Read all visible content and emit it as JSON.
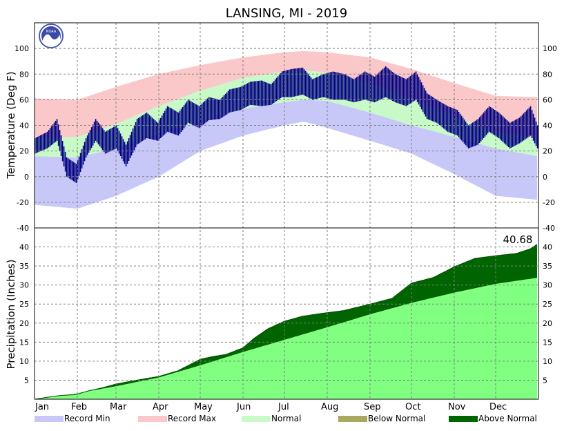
{
  "colors": {
    "record_min": "#c8c8f8",
    "record_max": "#fac8c8",
    "normal": "#c8fac8",
    "observed": "#00007f",
    "below_normal": "#a8a860",
    "above_normal": "#006400",
    "normal_precip": "#80ff80",
    "grid": "#808080"
  },
  "logo": {
    "text": "NOAA",
    "icon": "noaa-logo-icon"
  },
  "chart_data": [
    {
      "type": "area",
      "title": "LANSING, MI - 2019",
      "ylabel": "Temperature (Deg F)",
      "ylim": [
        -40,
        120
      ],
      "yticks": [
        -40,
        -20,
        0,
        20,
        40,
        60,
        80,
        100
      ],
      "grid": true,
      "x_unit": "day of year",
      "xlim": [
        1,
        365
      ],
      "series": [
        {
          "name": "Record Max",
          "x": [
            1,
            32,
            60,
            91,
            121,
            152,
            182,
            196,
            213,
            244,
            274,
            305,
            335,
            365
          ],
          "values": [
            61,
            60,
            70,
            80,
            87,
            93,
            97,
            98,
            97,
            93,
            84,
            73,
            63,
            62
          ]
        },
        {
          "name": "Normal",
          "x": [
            1,
            32,
            60,
            91,
            121,
            152,
            182,
            196,
            213,
            244,
            274,
            305,
            335,
            365
          ],
          "values_high": [
            30,
            31,
            41,
            55,
            67,
            77,
            82,
            83,
            81,
            73,
            61,
            47,
            35,
            30
          ],
          "values_low": [
            16,
            15,
            22,
            33,
            43,
            53,
            58,
            60,
            59,
            50,
            40,
            31,
            22,
            16
          ]
        },
        {
          "name": "Record Min",
          "x": [
            1,
            32,
            60,
            91,
            121,
            152,
            182,
            196,
            213,
            244,
            274,
            305,
            335,
            365
          ],
          "values": [
            -22,
            -25,
            -15,
            0,
            20,
            32,
            40,
            43,
            38,
            28,
            18,
            2,
            -15,
            -18
          ]
        },
        {
          "name": "",
          "x": [
            1,
            10,
            17,
            24,
            31,
            38,
            45,
            52,
            60,
            67,
            75,
            82,
            90,
            97,
            105,
            112,
            120,
            127,
            135,
            142,
            150,
            157,
            165,
            172,
            180,
            187,
            195,
            202,
            210,
            217,
            225,
            232,
            240,
            247,
            255,
            262,
            270,
            277,
            285,
            292,
            300,
            307,
            315,
            322,
            330,
            337,
            345,
            352,
            360,
            365
          ],
          "values_high": [
            30,
            35,
            45,
            15,
            10,
            30,
            45,
            35,
            40,
            25,
            45,
            50,
            42,
            55,
            50,
            60,
            55,
            62,
            60,
            68,
            70,
            74,
            75,
            72,
            82,
            84,
            85,
            76,
            80,
            82,
            80,
            76,
            82,
            78,
            86,
            80,
            76,
            82,
            65,
            60,
            55,
            52,
            40,
            45,
            55,
            50,
            42,
            46,
            55,
            40
          ],
          "values_low": [
            18,
            22,
            28,
            0,
            -5,
            15,
            28,
            18,
            22,
            8,
            25,
            30,
            28,
            35,
            32,
            42,
            38,
            44,
            45,
            50,
            52,
            56,
            55,
            56,
            62,
            62,
            64,
            60,
            62,
            60,
            60,
            58,
            60,
            58,
            62,
            58,
            55,
            60,
            45,
            42,
            35,
            32,
            22,
            25,
            35,
            30,
            22,
            26,
            32,
            22
          ]
        }
      ]
    },
    {
      "type": "area",
      "ylabel": "Precipitation (Inches)",
      "ylim": [
        0,
        45
      ],
      "yticks": [
        5,
        10,
        15,
        20,
        25,
        30,
        35,
        40
      ],
      "grid": true,
      "categories": [
        "Jan",
        "Feb",
        "Mar",
        "Apr",
        "May",
        "Jun",
        "Jul",
        "Aug",
        "Sep",
        "Oct",
        "Nov",
        "Dec"
      ],
      "annotation": "40.68",
      "x_unit": "day of year",
      "xlim": [
        1,
        365
      ],
      "series": [
        {
          "name": "Normal",
          "x": [
            1,
            32,
            60,
            91,
            121,
            152,
            182,
            213,
            244,
            274,
            305,
            335,
            365
          ],
          "values": [
            0,
            1.6,
            3.4,
            5.7,
            8.9,
            12.4,
            15.6,
            18.9,
            22.3,
            25.3,
            28.0,
            30.3,
            31.9
          ]
        },
        {
          "name": "",
          "x": [
            1,
            10,
            20,
            31,
            40,
            50,
            60,
            75,
            91,
            105,
            121,
            130,
            140,
            152,
            160,
            170,
            182,
            195,
            210,
            225,
            244,
            260,
            274,
            290,
            305,
            320,
            335,
            350,
            360,
            365
          ],
          "values": [
            0,
            0.5,
            1.0,
            1.2,
            2.2,
            3.0,
            4.0,
            5.0,
            6.0,
            7.5,
            10.5,
            11.2,
            11.8,
            13.5,
            16.0,
            18.5,
            20.5,
            21.8,
            22.6,
            23.3,
            25.0,
            26.5,
            30.5,
            32.0,
            34.8,
            37.0,
            37.7,
            38.3,
            39.5,
            40.68
          ]
        }
      ]
    }
  ],
  "legend": [
    {
      "label": "Record Min",
      "color": "#c8c8f8"
    },
    {
      "label": "Record Max",
      "color": "#fac8c8"
    },
    {
      "label": "Normal",
      "color": "#c8fac8"
    },
    {
      "label": "Below Normal",
      "color": "#a8a860"
    },
    {
      "label": "Above Normal",
      "color": "#006400"
    }
  ]
}
